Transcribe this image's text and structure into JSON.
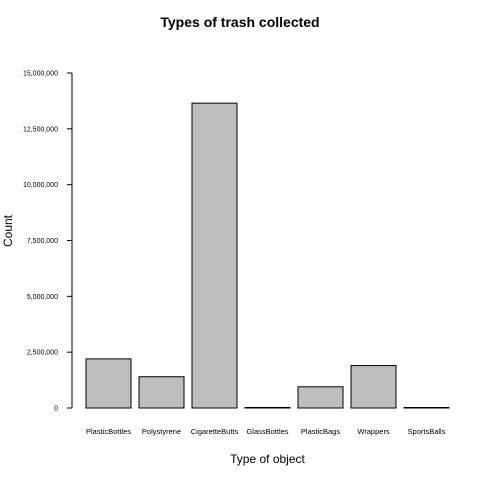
{
  "chart_data": {
    "type": "bar",
    "title": "Types of trash collected",
    "xlabel": "Type of object",
    "ylabel": "Count",
    "categories": [
      "PlasticBottles",
      "Polystyrene",
      "CigaretteButts",
      "GlassBottles",
      "PlasticBags",
      "Wrappers",
      "SportsBalls"
    ],
    "values": [
      2200000,
      1400000,
      13650000,
      25000,
      950000,
      1900000,
      12000
    ],
    "ylim": [
      0,
      15000000
    ],
    "yticks": [
      0,
      2500000,
      5000000,
      7500000,
      10000000,
      12500000,
      15000000
    ],
    "ytick_labels": [
      "0",
      "2,500,000",
      "5,000,000",
      "7,500,000",
      "10,000,000",
      "12,500,000",
      "15,000,000"
    ],
    "bar_fill": "#bebebe",
    "bar_stroke": "#000000",
    "grid": false,
    "legend": "none"
  }
}
